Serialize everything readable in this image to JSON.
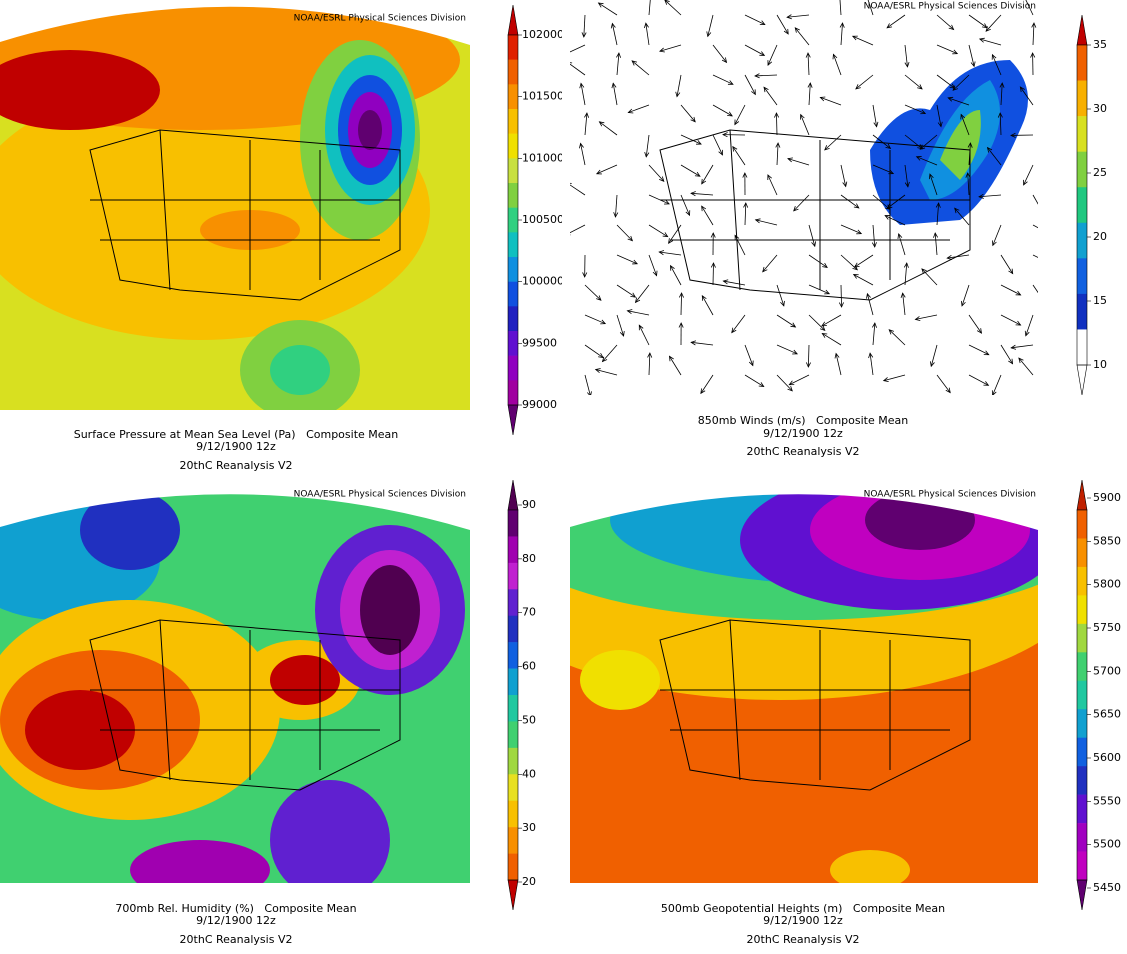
{
  "panels": [
    {
      "credit": "NOAA/ESRL Physical Sciences Division",
      "caption": [
        "Surface Pressure at Mean Sea Level (Pa)   Composite Mean",
        "9/12/1900 12z",
        "20thC Reanalysis V2"
      ],
      "colorbar": {
        "labels": [
          102000,
          101500,
          101000,
          100500,
          100000,
          99500,
          99000
        ],
        "colors": [
          "#c00000",
          "#e02000",
          "#f06000",
          "#f89000",
          "#f8c000",
          "#f0e000",
          "#c8e040",
          "#80d040",
          "#30d080",
          "#10c0c0",
          "#1090e0",
          "#1050e0",
          "#2020c0",
          "#6010d0",
          "#9000c0",
          "#a000a0",
          "#600070"
        ]
      }
    },
    {
      "credit": "NOAA/ESRL Physical Sciences Division",
      "caption": [
        "850mb Winds (m/s)   Composite Mean",
        "9/12/1900 12z",
        "20thC Reanalysis V2"
      ],
      "colorbar": {
        "labels": [
          35,
          30,
          25,
          20,
          15,
          10
        ],
        "colors": [
          "#c00000",
          "#f06000",
          "#f8b000",
          "#d8e020",
          "#80d040",
          "#20c880",
          "#10a0d0",
          "#1060e0",
          "#1030c0",
          "#ffffff",
          "#ffffff"
        ]
      }
    },
    {
      "credit": "NOAA/ESRL Physical Sciences Division",
      "caption": [
        "700mb Rel. Humidity (%)   Composite Mean",
        "9/12/1900 12z",
        "20thC Reanalysis V2"
      ],
      "colorbar": {
        "labels": [
          90,
          80,
          70,
          60,
          50,
          40,
          30,
          20
        ],
        "colors": [
          "#500050",
          "#600070",
          "#a000b0",
          "#c020d0",
          "#6020d0",
          "#2030c0",
          "#1060e0",
          "#10a0d0",
          "#20c8a0",
          "#40d070",
          "#a0d840",
          "#e8e020",
          "#f8c000",
          "#f89000",
          "#f06000",
          "#c00000"
        ]
      }
    },
    {
      "credit": "NOAA/ESRL Physical Sciences Division",
      "caption": [
        "500mb Geopotential Heights (m)   Composite Mean",
        "9/12/1900 12z",
        "20thC Reanalysis V2"
      ],
      "colorbar": {
        "labels": [
          5900,
          5850,
          5800,
          5750,
          5700,
          5650,
          5600,
          5550,
          5500,
          5450
        ],
        "colors": [
          "#c02000",
          "#f06000",
          "#f89000",
          "#f8c000",
          "#f0e000",
          "#a0d840",
          "#40d070",
          "#20c8a0",
          "#10a0d0",
          "#1060e0",
          "#2030c0",
          "#6010d0",
          "#a000c0",
          "#c000c0",
          "#600070"
        ]
      }
    }
  ]
}
